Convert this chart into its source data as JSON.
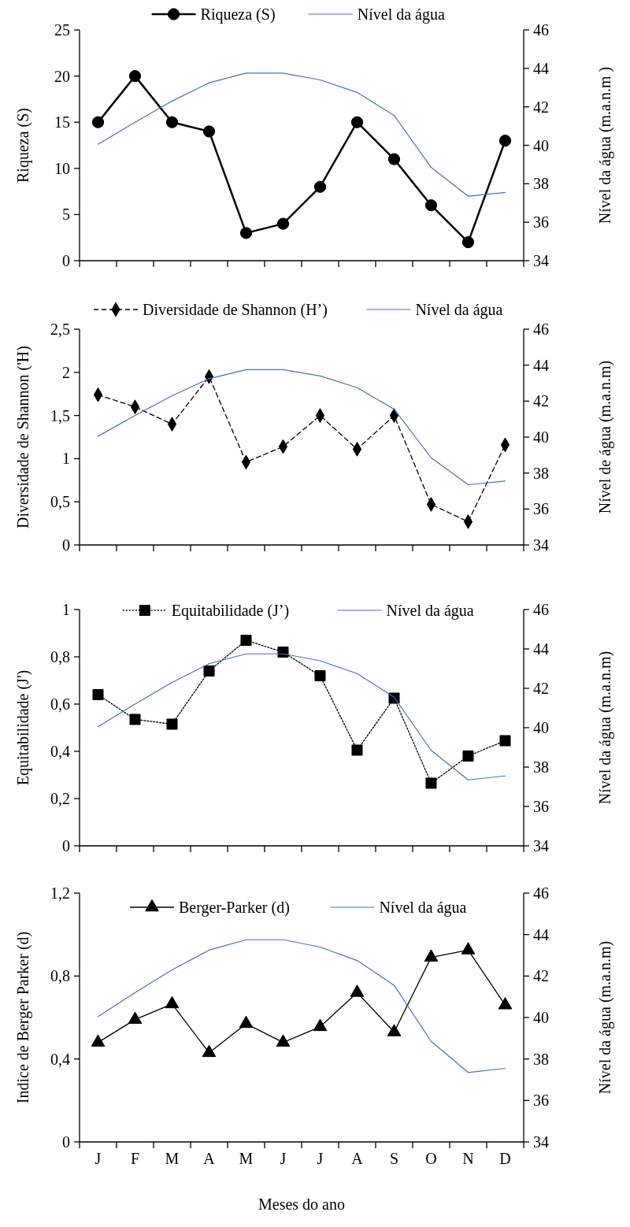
{
  "chart_data": [
    {
      "type": "line",
      "categories": [
        null,
        null,
        null,
        null,
        null,
        null,
        null,
        null,
        null,
        null,
        null,
        null
      ],
      "tick_labels": "y",
      "legend": "top",
      "ylabel": "Riqueza (S)",
      "y2label": "Nível da água (m.a.n.m )",
      "ylim": [
        0,
        25
      ],
      "yticks": [
        0,
        5,
        10,
        15,
        20,
        25
      ],
      "y2lim": [
        34,
        46
      ],
      "y2ticks": [
        34,
        36,
        38,
        40,
        42,
        44,
        46
      ],
      "series": [
        {
          "name": "Riqueza (S)",
          "color": "#000000",
          "marker": "circle",
          "line_style": "solid",
          "values": [
            15,
            20,
            15,
            14,
            3,
            4,
            8,
            15,
            11,
            6,
            2,
            13
          ]
        },
        {
          "name": "Nível da água",
          "color": "#4472c4",
          "marker": "none",
          "line_style": "solid",
          "axis": "y2",
          "values": [
            40.05,
            41.2,
            42.3,
            43.25,
            43.75,
            43.75,
            43.4,
            42.75,
            41.55,
            38.85,
            37.35,
            37.55
          ]
        }
      ]
    },
    {
      "type": "line",
      "categories": [
        null,
        null,
        null,
        null,
        null,
        null,
        null,
        null,
        null,
        null,
        null,
        null
      ],
      "tick_labels": "y",
      "legend": "top",
      "ylabel": "Diversidade de Shannon ('H)",
      "y2label": "Nível de água (m.a.n.m)",
      "ylim": [
        0,
        2.5
      ],
      "yticks": [
        0,
        {
          "value": 0.5,
          "label": "0,5"
        },
        1,
        {
          "value": 1.5,
          "label": "1,5"
        },
        2,
        {
          "value": 2.5,
          "label": "2,5"
        }
      ],
      "y2lim": [
        34,
        46
      ],
      "y2ticks": [
        34,
        36,
        38,
        40,
        42,
        44,
        46
      ],
      "series": [
        {
          "name": "Diversidade de Shannon (H’)",
          "color": "#000000",
          "marker": "diamond",
          "line_style": "dashed",
          "values": [
            1.74,
            1.6,
            1.4,
            1.95,
            0.96,
            1.14,
            1.5,
            1.11,
            1.5,
            0.47,
            0.27,
            1.16
          ]
        },
        {
          "name": "Nível da água",
          "color": "#4472c4",
          "marker": "none",
          "line_style": "solid",
          "axis": "y2",
          "values": [
            40.05,
            41.2,
            42.3,
            43.25,
            43.75,
            43.75,
            43.4,
            42.75,
            41.55,
            38.85,
            37.35,
            37.55
          ]
        }
      ]
    },
    {
      "type": "line",
      "categories": [
        null,
        null,
        null,
        null,
        null,
        null,
        null,
        null,
        null,
        null,
        null,
        null
      ],
      "tick_labels": "y",
      "legend": "top",
      "ylabel": "Equitabilidade (J')",
      "y2label": "Nível da água (m.a.n.m)",
      "ylim": [
        0,
        1
      ],
      "yticks": [
        0,
        {
          "value": 0.2,
          "label": "0,2"
        },
        {
          "value": 0.4,
          "label": "0,4"
        },
        {
          "value": 0.6,
          "label": "0,6"
        },
        {
          "value": 0.8,
          "label": "0,8"
        },
        1
      ],
      "y2lim": [
        34,
        46
      ],
      "y2ticks": [
        34,
        36,
        38,
        40,
        42,
        44,
        46
      ],
      "series": [
        {
          "name": "Equitabilidade (J’)",
          "color": "#000000",
          "marker": "square",
          "line_style": "dotted",
          "values": [
            0.64,
            0.535,
            0.515,
            0.74,
            0.87,
            0.82,
            0.72,
            0.405,
            0.625,
            0.265,
            0.38,
            0.445
          ]
        },
        {
          "name": "Nível da água",
          "color": "#4472c4",
          "marker": "none",
          "line_style": "solid",
          "axis": "y2",
          "values": [
            40.05,
            41.2,
            42.3,
            43.25,
            43.75,
            43.75,
            43.4,
            42.75,
            41.55,
            38.85,
            37.35,
            37.55
          ]
        }
      ]
    },
    {
      "type": "line",
      "categories": [
        "J",
        "F",
        "M",
        "A",
        "M",
        "J",
        "J",
        "A",
        "S",
        "O",
        "N",
        "D"
      ],
      "legend": "top",
      "xlabel": "Meses do ano",
      "ylabel": "Indice de Berger Parker (d)",
      "y2label": "Nível da água (m.a.n.m)",
      "ylim": [
        0,
        1.2
      ],
      "yticks": [
        0,
        {
          "value": 0.4,
          "label": "0,4"
        },
        {
          "value": 0.8,
          "label": "0,8"
        },
        {
          "value": 1.2,
          "label": "1,2"
        }
      ],
      "y2lim": [
        34,
        46
      ],
      "y2ticks": [
        34,
        36,
        38,
        40,
        42,
        44,
        46
      ],
      "series": [
        {
          "name": "Berger-Parker (d)",
          "color": "#000000",
          "marker": "triangle",
          "line_style": "solid",
          "values": [
            0.48,
            0.59,
            0.665,
            0.43,
            0.57,
            0.48,
            0.555,
            0.72,
            0.53,
            0.89,
            0.925,
            0.66
          ]
        },
        {
          "name": "Nível da água",
          "color": "#4472c4",
          "marker": "none",
          "line_style": "solid",
          "axis": "y2",
          "values": [
            40.05,
            41.2,
            42.3,
            43.25,
            43.75,
            43.75,
            43.4,
            42.75,
            41.55,
            38.85,
            37.35,
            37.55
          ]
        }
      ]
    }
  ]
}
